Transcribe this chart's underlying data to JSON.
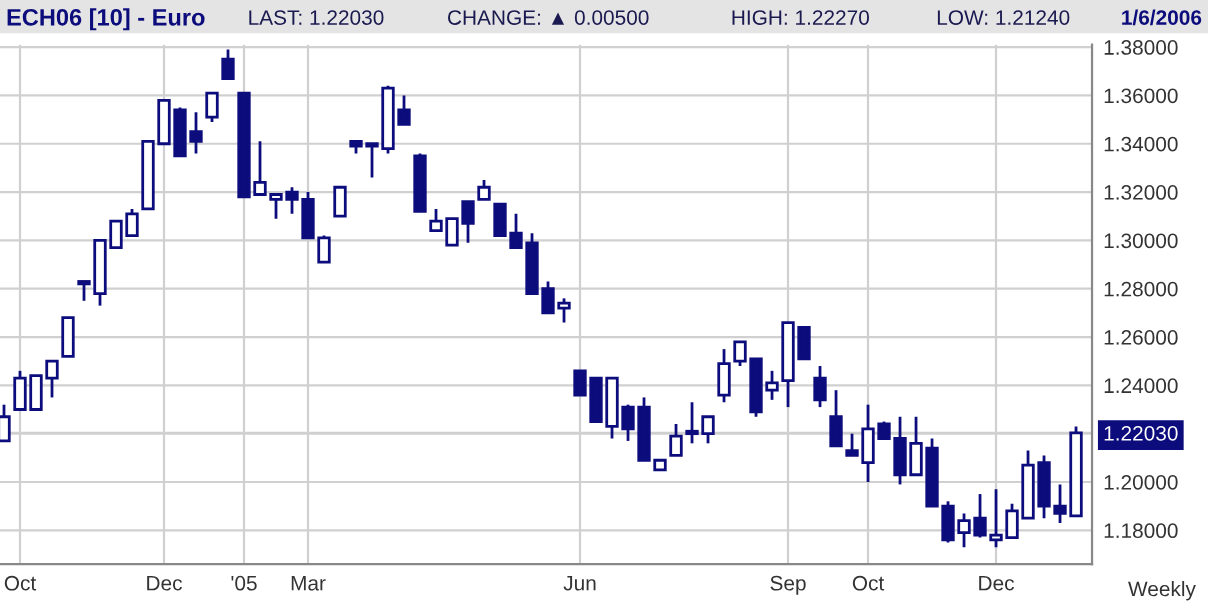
{
  "chart_data": {
    "type": "candlestick",
    "title": "ECH06 [10] - Euro",
    "annotations": [
      "LAST: 1.22030",
      "CHANGE: ▲ 0.00500",
      "HIGH: 1.22270",
      "LOW: 1.21240",
      "1/6/2006",
      "Weekly"
    ],
    "categories": [
      null,
      "Oct",
      null,
      null,
      null,
      null,
      null,
      null,
      null,
      null,
      "Dec",
      null,
      null,
      null,
      null,
      "'05",
      null,
      null,
      null,
      "Mar",
      null,
      null,
      null,
      null,
      null,
      null,
      null,
      null,
      null,
      null,
      null,
      null,
      null,
      null,
      null,
      null,
      "Jun",
      null,
      null,
      null,
      null,
      null,
      null,
      null,
      null,
      null,
      null,
      null,
      null,
      "Sep",
      null,
      null,
      null,
      null,
      "Oct",
      null,
      null,
      null,
      null,
      null,
      null,
      null,
      "Dec",
      null,
      null,
      null,
      null,
      null
    ],
    "series": [
      {
        "color": "#0c0c7c",
        "ohlc": [
          [
            1.217,
            1.232,
            1.217,
            1.227
          ],
          [
            1.23,
            1.246,
            1.23,
            1.243
          ],
          [
            1.23,
            1.244,
            1.23,
            1.244
          ],
          [
            1.243,
            1.25,
            1.235,
            1.25
          ],
          [
            1.252,
            1.268,
            1.252,
            1.268
          ],
          [
            1.283,
            1.283,
            1.275,
            1.282
          ],
          [
            1.278,
            1.3,
            1.273,
            1.3
          ],
          [
            1.297,
            1.308,
            1.297,
            1.308
          ],
          [
            1.302,
            1.313,
            1.302,
            1.311
          ],
          [
            1.313,
            1.341,
            1.313,
            1.341
          ],
          [
            1.34,
            1.358,
            1.34,
            1.358
          ],
          [
            1.354,
            1.355,
            1.335,
            1.335
          ],
          [
            1.345,
            1.353,
            1.336,
            1.341
          ],
          [
            1.351,
            1.361,
            1.349,
            1.361
          ],
          [
            1.375,
            1.379,
            1.367,
            1.367
          ],
          [
            1.361,
            1.361,
            1.318,
            1.318
          ],
          [
            1.319,
            1.341,
            1.319,
            1.324
          ],
          [
            1.317,
            1.319,
            1.309,
            1.319
          ],
          [
            1.32,
            1.322,
            1.311,
            1.317
          ],
          [
            1.317,
            1.32,
            1.301,
            1.301
          ],
          [
            1.291,
            1.302,
            1.291,
            1.301
          ],
          [
            1.31,
            1.322,
            1.31,
            1.322
          ],
          [
            1.341,
            1.341,
            1.336,
            1.339
          ],
          [
            1.34,
            1.34,
            1.326,
            1.339
          ],
          [
            1.338,
            1.364,
            1.336,
            1.363
          ],
          [
            1.354,
            1.36,
            1.348,
            1.348
          ],
          [
            1.335,
            1.336,
            1.312,
            1.312
          ],
          [
            1.304,
            1.313,
            1.304,
            1.308
          ],
          [
            1.298,
            1.309,
            1.298,
            1.309
          ],
          [
            1.316,
            1.316,
            1.299,
            1.307
          ],
          [
            1.317,
            1.325,
            1.317,
            1.322
          ],
          [
            1.315,
            1.315,
            1.302,
            1.302
          ],
          [
            1.303,
            1.311,
            1.297,
            1.297
          ],
          [
            1.299,
            1.303,
            1.278,
            1.278
          ],
          [
            1.28,
            1.283,
            1.27,
            1.27
          ],
          [
            1.272,
            1.276,
            1.266,
            1.274
          ],
          [
            1.246,
            1.246,
            1.236,
            1.236
          ],
          [
            1.243,
            1.243,
            1.225,
            1.225
          ],
          [
            1.223,
            1.243,
            1.218,
            1.243
          ],
          [
            1.231,
            1.232,
            1.217,
            1.222
          ],
          [
            1.231,
            1.235,
            1.209,
            1.209
          ],
          [
            1.205,
            1.209,
            1.205,
            1.209
          ],
          [
            1.211,
            1.224,
            1.211,
            1.219
          ],
          [
            1.221,
            1.233,
            1.216,
            1.22
          ],
          [
            1.22,
            1.227,
            1.216,
            1.227
          ],
          [
            1.236,
            1.255,
            1.233,
            1.249
          ],
          [
            1.25,
            1.258,
            1.248,
            1.258
          ],
          [
            1.251,
            1.251,
            1.227,
            1.229
          ],
          [
            1.238,
            1.246,
            1.234,
            1.241
          ],
          [
            1.242,
            1.266,
            1.231,
            1.266
          ],
          [
            1.264,
            1.264,
            1.251,
            1.251
          ],
          [
            1.243,
            1.248,
            1.231,
            1.234
          ],
          [
            1.227,
            1.238,
            1.215,
            1.215
          ],
          [
            1.213,
            1.22,
            1.211,
            1.211
          ],
          [
            1.208,
            1.232,
            1.2,
            1.222
          ],
          [
            1.224,
            1.225,
            1.218,
            1.218
          ],
          [
            1.218,
            1.227,
            1.199,
            1.203
          ],
          [
            1.203,
            1.227,
            1.203,
            1.216
          ],
          [
            1.214,
            1.218,
            1.19,
            1.19
          ],
          [
            1.19,
            1.192,
            1.175,
            1.176
          ],
          [
            1.179,
            1.187,
            1.173,
            1.184
          ],
          [
            1.185,
            1.195,
            1.177,
            1.178
          ],
          [
            1.176,
            1.197,
            1.173,
            1.178
          ],
          [
            1.177,
            1.191,
            1.177,
            1.188
          ],
          [
            1.185,
            1.213,
            1.185,
            1.207
          ],
          [
            1.208,
            1.211,
            1.185,
            1.19
          ],
          [
            1.19,
            1.199,
            1.183,
            1.187
          ],
          [
            1.186,
            1.223,
            1.186,
            1.2203
          ]
        ]
      }
    ],
    "ylim": [
      1.166,
      1.381
    ],
    "yticks": [
      {
        "value": 1.18,
        "label": "1.18000"
      },
      {
        "value": 1.2,
        "label": "1.20000"
      },
      {
        "value": 1.22,
        "label": null
      },
      {
        "value": 1.2203,
        "label": "1.22030"
      },
      {
        "value": 1.24,
        "label": "1.24000"
      },
      {
        "value": 1.26,
        "label": "1.26000"
      },
      {
        "value": 1.28,
        "label": "1.28000"
      },
      {
        "value": 1.3,
        "label": "1.30000"
      },
      {
        "value": 1.32,
        "label": "1.32000"
      },
      {
        "value": 1.34,
        "label": "1.34000"
      },
      {
        "value": 1.36,
        "label": "1.36000"
      },
      {
        "value": 1.38,
        "label": "1.38000"
      }
    ],
    "grid": true
  }
}
